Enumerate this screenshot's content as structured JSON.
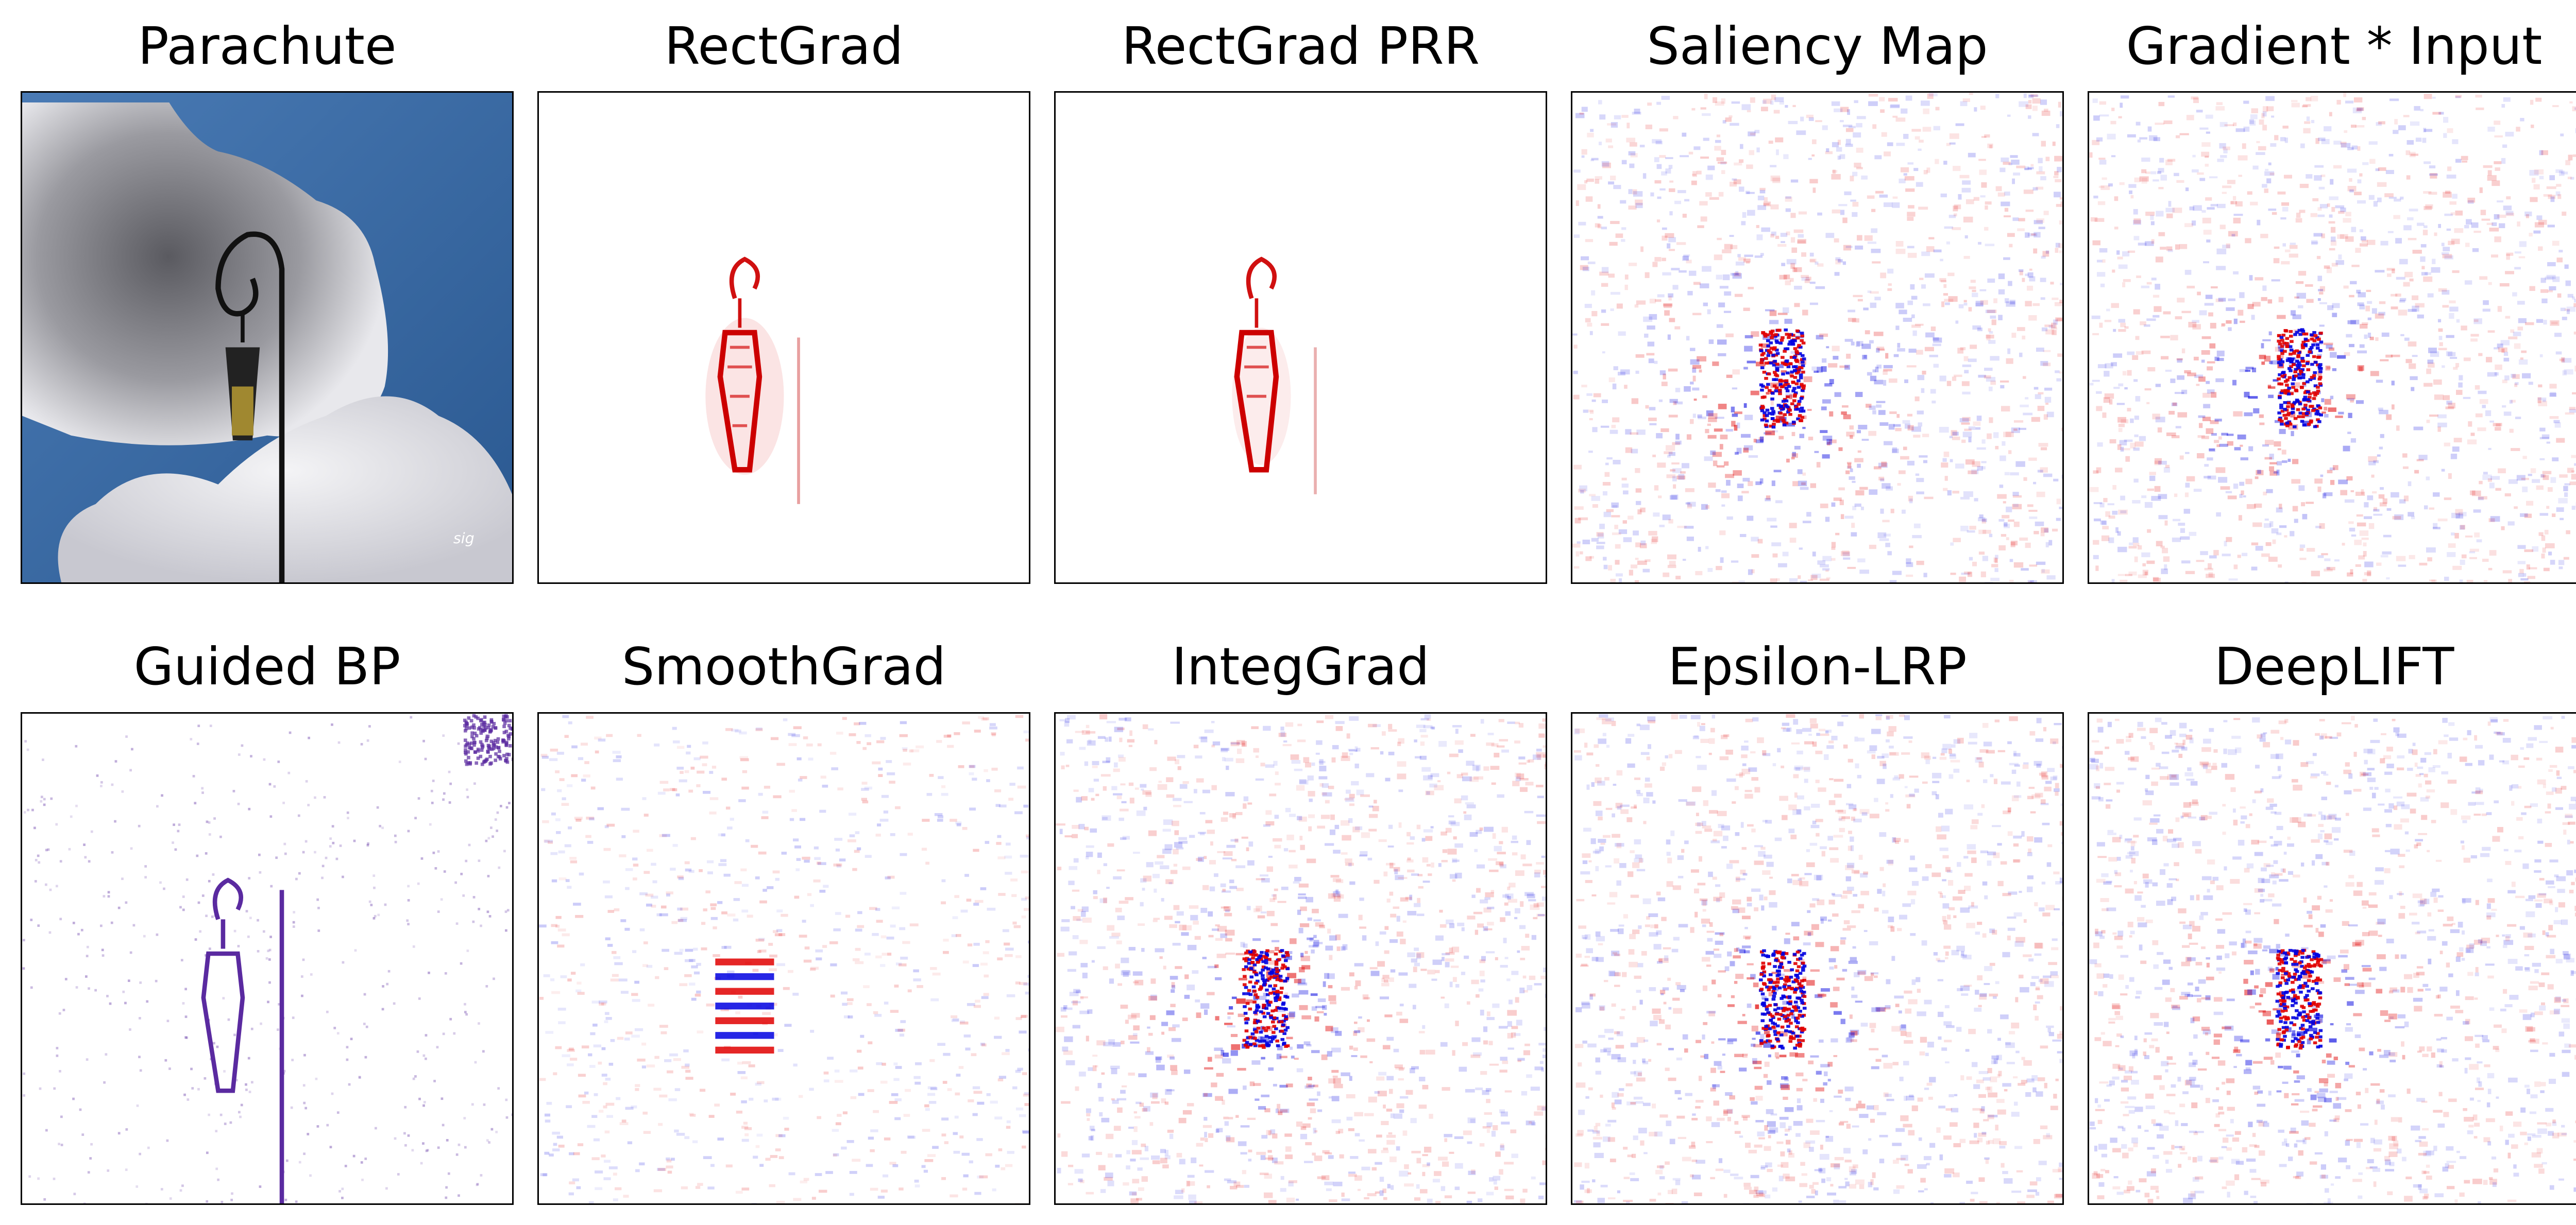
{
  "figure": {
    "rows": [
      {
        "panels": [
          {
            "title": "Parachute",
            "kind": "photo"
          },
          {
            "title": "RectGrad",
            "kind": "rectgrad"
          },
          {
            "title": "RectGrad PRR",
            "kind": "rectgrad"
          },
          {
            "title": "Saliency Map",
            "kind": "noisy"
          },
          {
            "title": "Gradient * Input",
            "kind": "noisy"
          }
        ]
      },
      {
        "panels": [
          {
            "title": "Guided BP",
            "kind": "guided"
          },
          {
            "title": "SmoothGrad",
            "kind": "smooth"
          },
          {
            "title": "IntegGrad",
            "kind": "noisy"
          },
          {
            "title": "Epsilon-LRP",
            "kind": "noisy"
          },
          {
            "title": "DeepLIFT",
            "kind": "noisy"
          }
        ]
      }
    ],
    "colors": {
      "positive": "#e00000",
      "negative": "#0000e0",
      "guided": "#5a2aa0",
      "sky": "#3a6aa0"
    }
  }
}
